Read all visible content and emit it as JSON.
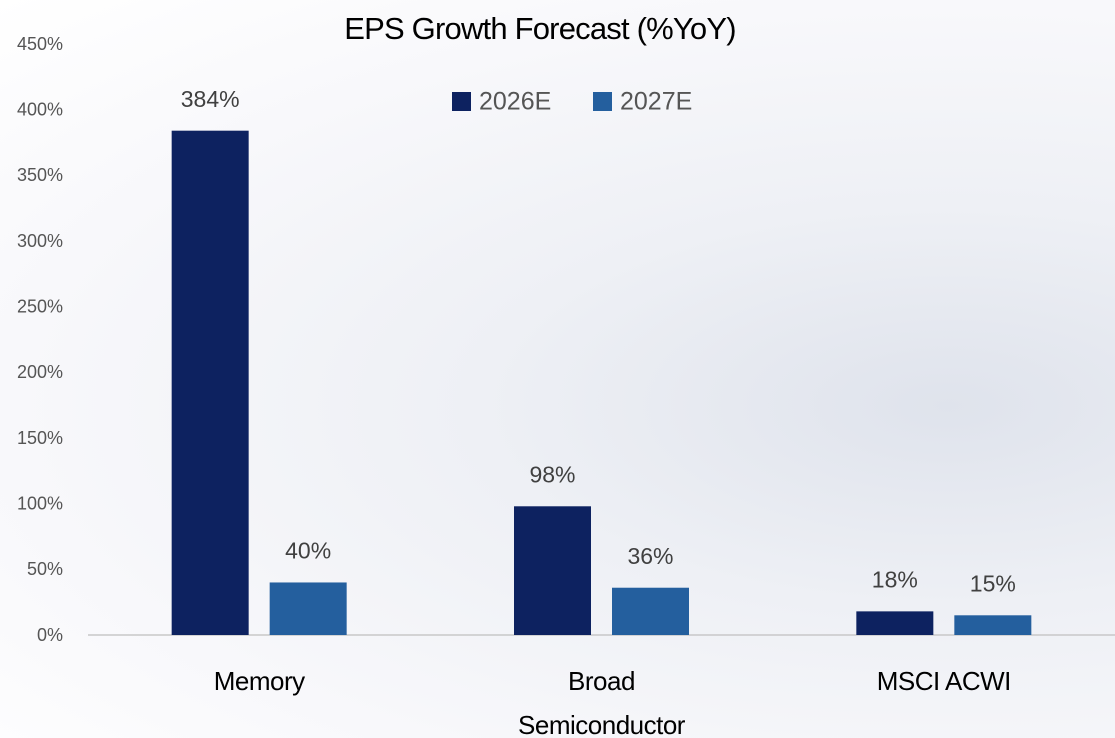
{
  "chart_data": {
    "type": "bar",
    "title": "EPS Growth Forecast (%YoY)",
    "categories": [
      "Memory",
      "Broad Semiconductor",
      "MSCI ACWI"
    ],
    "series": [
      {
        "name": "2026E",
        "color": "#0d2260",
        "values": [
          384,
          98,
          18
        ],
        "value_labels": [
          "384%",
          "98%",
          "18%"
        ]
      },
      {
        "name": "2027E",
        "color": "#245f9e",
        "values": [
          40,
          36,
          15
        ],
        "value_labels": [
          "40%",
          "36%",
          "15%"
        ]
      }
    ],
    "ylim": [
      0,
      450
    ],
    "yticks": [
      {
        "value": 0,
        "label": "0%"
      },
      {
        "value": 50,
        "label": "50%"
      },
      {
        "value": 100,
        "label": "100%"
      },
      {
        "value": 150,
        "label": "150%"
      },
      {
        "value": 200,
        "label": "200%"
      },
      {
        "value": 250,
        "label": "250%"
      },
      {
        "value": 300,
        "label": "300%"
      },
      {
        "value": 350,
        "label": "350%"
      },
      {
        "value": 400,
        "label": "400%"
      },
      {
        "value": 450,
        "label": "450%"
      }
    ],
    "grid": false
  }
}
